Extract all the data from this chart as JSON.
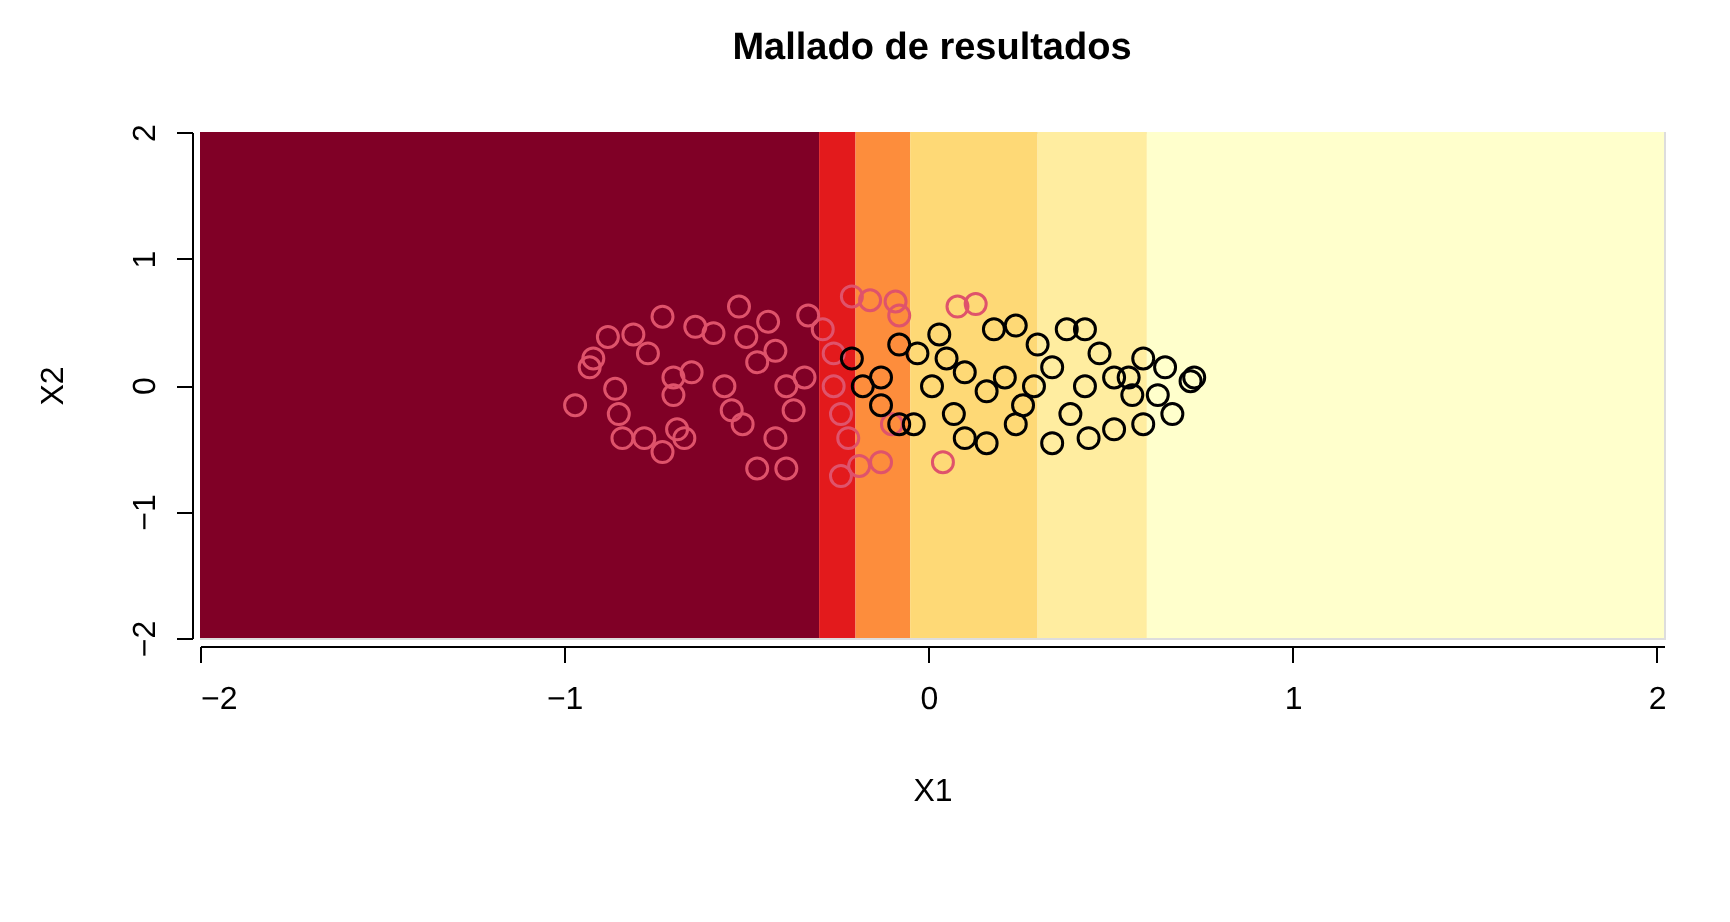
{
  "chart_data": {
    "type": "scatter",
    "title": "Mallado de resultados",
    "xlabel": "X1",
    "ylabel": "X2",
    "xlim": [
      -2,
      2.02
    ],
    "ylim": [
      -2,
      2
    ],
    "xticks": [
      {
        "value": -2,
        "label": "−2"
      },
      {
        "value": -1,
        "label": "−1"
      },
      0,
      1,
      2
    ],
    "yticks": [
      {
        "value": -2,
        "label": "−2"
      },
      {
        "value": -1,
        "label": "−1"
      },
      0,
      1,
      2
    ],
    "grid": false,
    "marker": "circle",
    "bands": [
      {
        "axis": "x",
        "from": -2,
        "to": -0.3,
        "color": "#800026"
      },
      {
        "axis": "x",
        "from": -0.3,
        "to": -0.2,
        "color": "#e31a1c"
      },
      {
        "axis": "x",
        "from": -0.2,
        "to": -0.05,
        "color": "#fd8d3c"
      },
      {
        "axis": "x",
        "from": -0.05,
        "to": 0.3,
        "color": "#fed976"
      },
      {
        "axis": "x",
        "from": 0.3,
        "to": 0.6,
        "color": "#ffeda0"
      },
      {
        "axis": "x",
        "from": 0.6,
        "to": 2.02,
        "color": "#ffffcc"
      }
    ],
    "series": [
      {
        "color": "#df536b",
        "x": [
          -0.97,
          -0.92,
          -0.88,
          -0.81,
          -0.73,
          -0.77,
          -0.86,
          -0.85,
          -0.84,
          -0.78,
          -0.73,
          -0.67,
          -0.69,
          -0.65,
          -0.7,
          -0.64,
          -0.59,
          -0.52,
          -0.5,
          -0.44,
          -0.47,
          -0.56,
          -0.54,
          -0.51,
          -0.47,
          -0.39,
          -0.42,
          -0.39,
          -0.34,
          -0.37,
          -0.33,
          -0.29,
          -0.26,
          -0.24,
          -0.21,
          -0.16,
          -0.09,
          -0.08,
          -0.24,
          -0.19,
          -0.13,
          -0.22,
          -0.1,
          0.04,
          0.08,
          0.13,
          -0.26,
          -0.42,
          -0.7,
          -0.93
        ],
        "values": [
          -0.16,
          0.21,
          0.38,
          0.4,
          0.54,
          0.25,
          -0.03,
          -0.23,
          -0.42,
          -0.42,
          -0.53,
          -0.42,
          -0.35,
          0.1,
          -0.08,
          0.46,
          0.41,
          0.62,
          0.38,
          0.5,
          0.18,
          -0.01,
          -0.2,
          -0.31,
          -0.66,
          -0.66,
          -0.42,
          -0.01,
          0.06,
          -0.2,
          0.55,
          0.44,
          -0.01,
          -0.23,
          0.7,
          0.67,
          0.66,
          0.55,
          -0.72,
          -0.64,
          -0.61,
          -0.42,
          -0.31,
          -0.61,
          0.62,
          0.64,
          0.25,
          0.27,
          0.06,
          0.14
        ]
      },
      {
        "color": "#000000",
        "x": [
          -0.21,
          -0.18,
          -0.13,
          -0.08,
          -0.03,
          0.03,
          0.01,
          0.07,
          0.1,
          0.16,
          0.18,
          0.24,
          0.21,
          0.26,
          0.3,
          0.34,
          0.38,
          0.43,
          0.39,
          0.44,
          0.51,
          0.47,
          0.51,
          0.55,
          0.59,
          0.65,
          0.72,
          0.73,
          0.67,
          0.59,
          0.63,
          0.16,
          0.1,
          -0.04,
          -0.13,
          0.29,
          0.34,
          0.05,
          -0.08,
          0.24,
          0.43,
          0.56
        ],
        "values": [
          0.21,
          -0.01,
          -0.16,
          0.32,
          0.25,
          0.4,
          -0.01,
          -0.23,
          -0.42,
          -0.46,
          0.44,
          0.47,
          0.06,
          -0.16,
          0.32,
          -0.46,
          0.44,
          0.44,
          -0.23,
          -0.42,
          -0.35,
          0.25,
          0.06,
          0.06,
          0.21,
          0.14,
          0.03,
          0.06,
          -0.23,
          -0.31,
          -0.08,
          -0.05,
          0.1,
          -0.31,
          0.06,
          -0.01,
          0.14,
          0.21,
          -0.31,
          -0.31,
          -0.01,
          -0.08
        ]
      }
    ]
  }
}
